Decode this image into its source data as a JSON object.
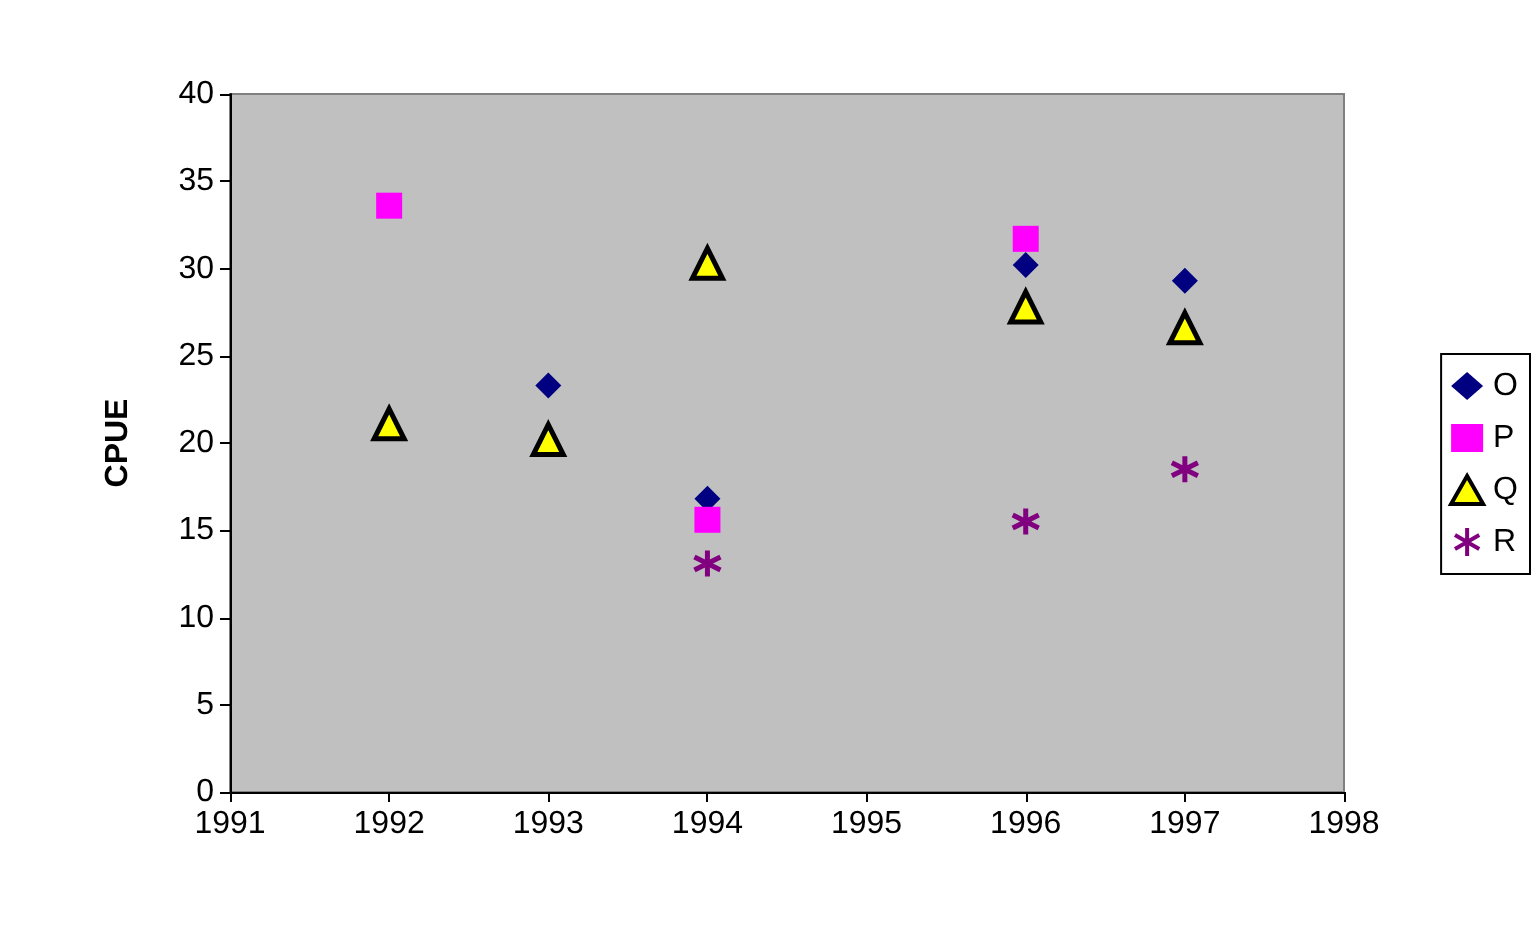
{
  "chart_data": {
    "type": "scatter",
    "ylabel": "CPUE",
    "xlim": [
      1991,
      1998
    ],
    "xticks": [
      1991,
      1992,
      1993,
      1994,
      1995,
      1996,
      1997,
      1998
    ],
    "ylim": [
      0,
      40
    ],
    "yticks": [
      0,
      5,
      10,
      15,
      20,
      25,
      30,
      35,
      40
    ],
    "grid": false,
    "legend": "right",
    "series": [
      {
        "name": "O",
        "color": "#000080",
        "marker": "diamond",
        "x": [
          1993,
          1994,
          1996,
          1997
        ],
        "values": [
          23.3,
          16.8,
          30.2,
          29.3
        ]
      },
      {
        "name": "P",
        "color": "#ff00ff",
        "marker": "square",
        "x": [
          1992,
          1994,
          1996
        ],
        "values": [
          33.6,
          15.6,
          31.7
        ]
      },
      {
        "name": "Q",
        "color": "#ffff00",
        "marker": "triangle",
        "x": [
          1992,
          1993,
          1994,
          1996,
          1997
        ],
        "values": [
          21.1,
          20.2,
          30.3,
          27.8,
          26.6
        ]
      },
      {
        "name": "R",
        "color": "#800080",
        "marker": "cross",
        "x": [
          1994,
          1996,
          1997
        ],
        "values": [
          13.1,
          15.5,
          18.5
        ]
      }
    ]
  }
}
